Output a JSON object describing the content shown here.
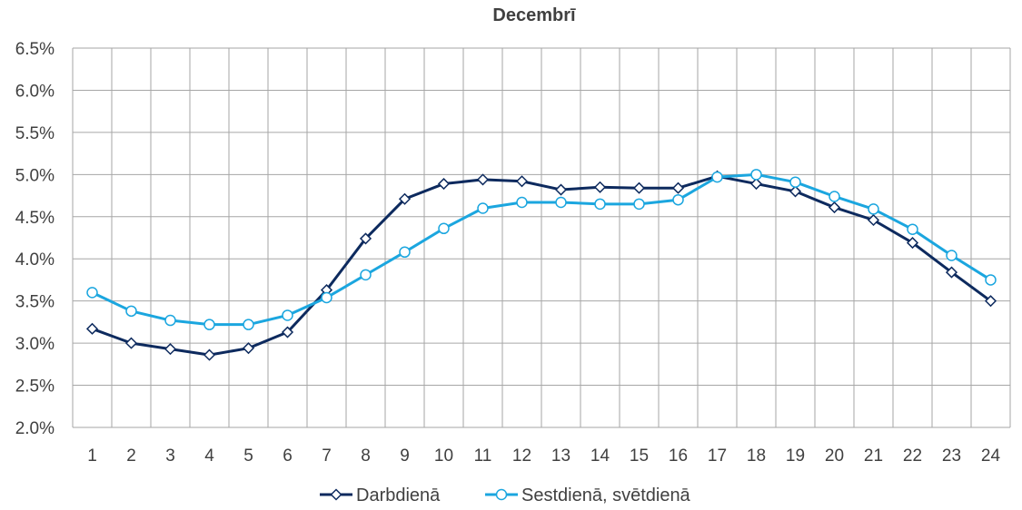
{
  "chart_data": {
    "type": "line",
    "title": "Decembrī",
    "xlabel": "",
    "ylabel": "",
    "categories": [
      "1",
      "2",
      "3",
      "4",
      "5",
      "6",
      "7",
      "8",
      "9",
      "10",
      "11",
      "12",
      "13",
      "14",
      "15",
      "16",
      "17",
      "18",
      "19",
      "20",
      "21",
      "22",
      "23",
      "24"
    ],
    "y_ticks": [
      "2.0%",
      "2.5%",
      "3.0%",
      "3.5%",
      "4.0%",
      "4.5%",
      "5.0%",
      "5.5%",
      "6.0%",
      "6.5%"
    ],
    "ylim": [
      2.0,
      6.5
    ],
    "y_unit": "%",
    "grid": true,
    "legend_position": "bottom",
    "series": [
      {
        "name": "Darbdienā",
        "color": "#0d2a5e",
        "marker": "diamond",
        "values": [
          3.17,
          3.0,
          2.93,
          2.86,
          2.94,
          3.13,
          3.63,
          4.24,
          4.71,
          4.89,
          4.94,
          4.92,
          4.82,
          4.85,
          4.84,
          4.84,
          4.98,
          4.89,
          4.8,
          4.61,
          4.46,
          4.19,
          3.84,
          3.5
        ]
      },
      {
        "name": "Sestdienā, svētdienā",
        "color": "#1ba6df",
        "marker": "circle",
        "values": [
          3.6,
          3.38,
          3.27,
          3.22,
          3.22,
          3.33,
          3.54,
          3.81,
          4.08,
          4.36,
          4.6,
          4.67,
          4.67,
          4.65,
          4.65,
          4.7,
          4.97,
          5.0,
          4.91,
          4.74,
          4.59,
          4.35,
          4.04,
          3.75
        ]
      }
    ]
  }
}
